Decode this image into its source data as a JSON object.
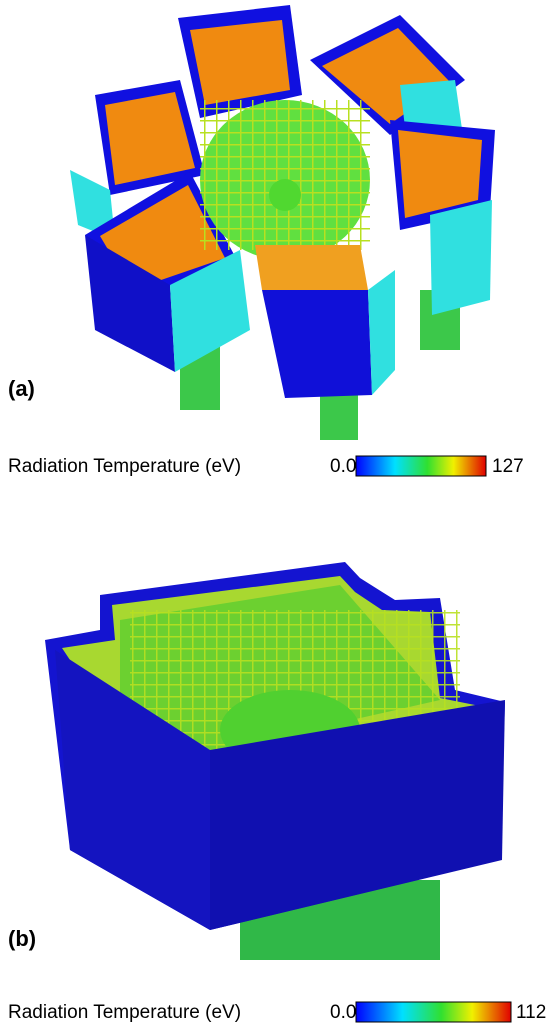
{
  "panels": [
    {
      "label": "(a)",
      "colorbar": {
        "title": "Radiation Temperature (eV)",
        "min": "0.0",
        "max": "127"
      }
    },
    {
      "label": "(b)",
      "colorbar": {
        "title": "Radiation Temperature (eV)",
        "min": "0.0",
        "max": "112"
      }
    }
  ]
}
